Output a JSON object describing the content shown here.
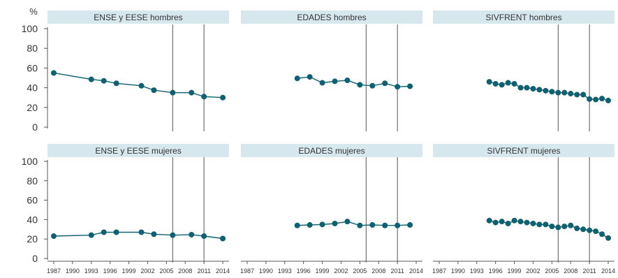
{
  "chart_data": {
    "type": "line",
    "ylabel": "%",
    "ylim": [
      0,
      100
    ],
    "yticks": [
      0,
      20,
      40,
      60,
      80,
      100
    ],
    "xlim": [
      1986,
      2015
    ],
    "xticks": [
      1987,
      1990,
      1993,
      1996,
      1999,
      2002,
      2005,
      2008,
      2011,
      2014
    ],
    "vlines": [
      2006,
      2011
    ],
    "colors": {
      "series": "#0f6070",
      "header": "#d6e7ee",
      "axis": "#555555",
      "vline": "#555555"
    },
    "panels": [
      {
        "title": "ENSE y EESE hombres",
        "x": [
          1987,
          1993,
          1995,
          1997,
          2001,
          2003,
          2006,
          2009,
          2011,
          2014
        ],
        "y": [
          55,
          48.5,
          47,
          44.5,
          42,
          37.5,
          35,
          35,
          31,
          30
        ]
      },
      {
        "title": "EDADES hombres",
        "x": [
          1995,
          1997,
          1999,
          2001,
          2003,
          2005,
          2007,
          2009,
          2011,
          2013
        ],
        "y": [
          49.5,
          51,
          45,
          46.5,
          47.5,
          43,
          42,
          44.5,
          41,
          41.5
        ]
      },
      {
        "title": "SIVFRENT hombres",
        "x": [
          1995,
          1996,
          1997,
          1998,
          1999,
          2000,
          2001,
          2002,
          2003,
          2004,
          2005,
          2006,
          2007,
          2008,
          2009,
          2010,
          2011,
          2012,
          2013,
          2014
        ],
        "y": [
          46,
          44,
          43,
          45,
          44,
          40,
          40,
          39,
          38,
          37,
          36,
          35,
          35,
          34,
          33,
          33,
          28.5,
          28,
          29,
          27
        ]
      },
      {
        "title": "ENSE y EESE mujeres",
        "x": [
          1987,
          1993,
          1995,
          1997,
          2001,
          2003,
          2006,
          2009,
          2011,
          2014
        ],
        "y": [
          23,
          24,
          27,
          27,
          27,
          25,
          24,
          24.5,
          23,
          20.5
        ]
      },
      {
        "title": "EDADES mujeres",
        "x": [
          1995,
          1997,
          1999,
          2001,
          2003,
          2005,
          2007,
          2009,
          2011,
          2013
        ],
        "y": [
          34,
          34.5,
          35,
          36,
          38,
          34,
          34.5,
          34,
          34,
          34.5
        ]
      },
      {
        "title": "SIVFRENT mujeres",
        "x": [
          1995,
          1996,
          1997,
          1998,
          1999,
          2000,
          2001,
          2002,
          2003,
          2004,
          2005,
          2006,
          2007,
          2008,
          2009,
          2010,
          2011,
          2012,
          2013,
          2014
        ],
        "y": [
          39,
          37,
          38,
          36,
          39,
          38,
          37,
          36,
          35,
          35,
          33,
          32,
          33,
          34,
          31,
          30,
          29,
          28,
          25,
          21
        ]
      }
    ]
  }
}
